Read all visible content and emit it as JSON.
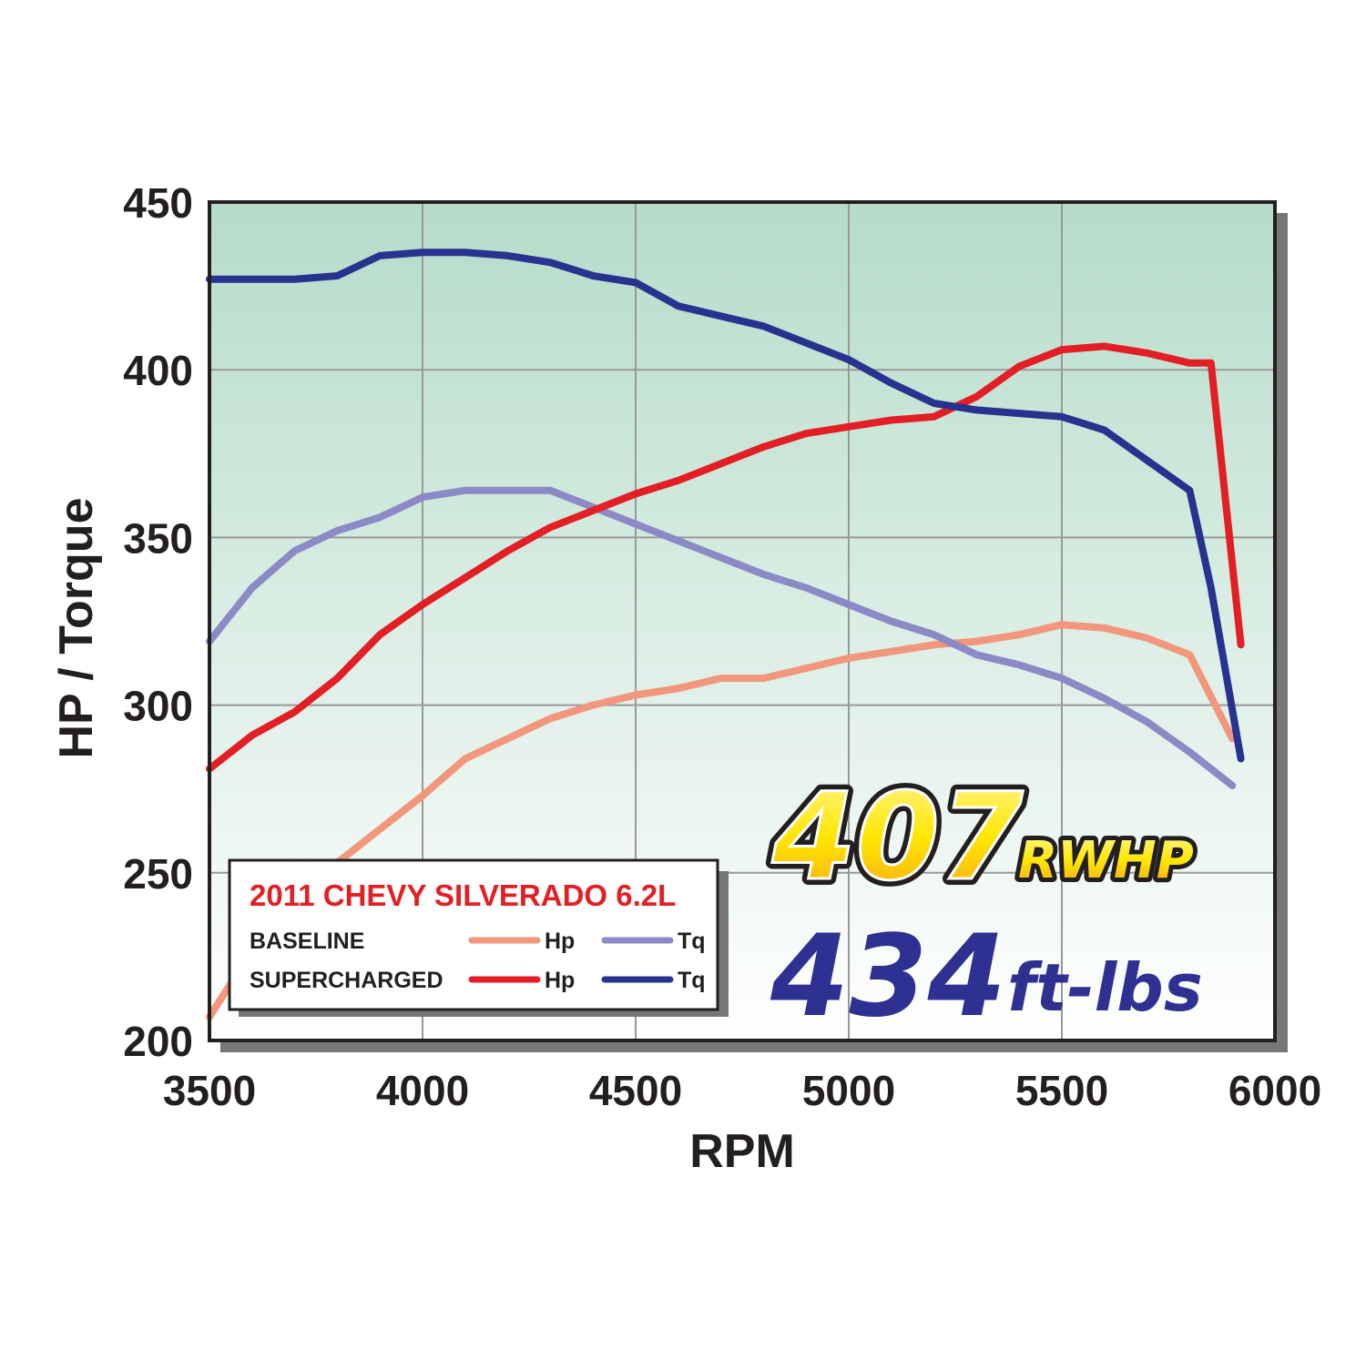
{
  "chart_data": {
    "type": "line",
    "xlabel": "RPM",
    "ylabel": "HP / Torque",
    "xlim": [
      3500,
      6000
    ],
    "ylim": [
      200,
      450
    ],
    "x_ticks": [
      "3500",
      "4000",
      "4500",
      "5000",
      "5500",
      "6000"
    ],
    "y_ticks": [
      "200",
      "250",
      "300",
      "350",
      "400",
      "450"
    ],
    "grid": true,
    "colors": {
      "background_top": "#b5dcc9",
      "background_bottom": "#ffffff",
      "baseline_hp": "#f2967c",
      "baseline_tq": "#8b8ac6",
      "supercharged_hp": "#e31e24",
      "supercharged_tq": "#27338e"
    },
    "series": [
      {
        "key": "baseline_hp",
        "x": [
          3500,
          3600,
          3700,
          3800,
          3900,
          4000,
          4100,
          4200,
          4300,
          4400,
          4500,
          4600,
          4700,
          4800,
          4900,
          5000,
          5100,
          5200,
          5300,
          5400,
          5500,
          5600,
          5700,
          5800,
          5900
        ],
        "values": [
          207,
          227,
          241,
          253,
          263,
          273,
          284,
          290,
          296,
          300,
          303,
          305,
          308,
          308,
          311,
          314,
          316,
          318,
          319,
          321,
          324,
          323,
          320,
          315,
          290
        ]
      },
      {
        "key": "baseline_tq",
        "x": [
          3500,
          3600,
          3700,
          3800,
          3900,
          4000,
          4100,
          4200,
          4300,
          4400,
          4500,
          4600,
          4700,
          4800,
          4900,
          5000,
          5100,
          5200,
          5300,
          5400,
          5500,
          5600,
          5700,
          5800,
          5900
        ],
        "values": [
          319,
          335,
          346,
          352,
          356,
          362,
          364,
          364,
          364,
          359,
          354,
          349,
          344,
          339,
          335,
          330,
          325,
          321,
          315,
          312,
          308,
          302,
          295,
          286,
          276
        ]
      },
      {
        "key": "supercharged_hp",
        "x": [
          3500,
          3600,
          3700,
          3800,
          3900,
          4000,
          4100,
          4200,
          4300,
          4400,
          4500,
          4600,
          4700,
          4800,
          4900,
          5000,
          5100,
          5200,
          5300,
          5400,
          5500,
          5600,
          5700,
          5800,
          5850,
          5920
        ],
        "values": [
          281,
          291,
          298,
          308,
          321,
          330,
          338,
          346,
          353,
          358,
          363,
          367,
          372,
          377,
          381,
          383,
          385,
          386,
          392,
          401,
          406,
          407,
          405,
          402,
          402,
          318
        ]
      },
      {
        "key": "supercharged_tq",
        "x": [
          3500,
          3600,
          3700,
          3800,
          3900,
          4000,
          4100,
          4200,
          4300,
          4400,
          4500,
          4600,
          4700,
          4800,
          4900,
          5000,
          5100,
          5200,
          5300,
          5400,
          5500,
          5600,
          5700,
          5800,
          5850,
          5920
        ],
        "values": [
          427,
          427,
          427,
          428,
          434,
          435,
          435,
          434,
          432,
          428,
          426,
          419,
          416,
          413,
          408,
          403,
          396,
          390,
          388,
          387,
          386,
          382,
          373,
          364,
          335,
          284
        ]
      }
    ],
    "legend": {
      "position": "bottom-left",
      "title": "2011 CHEVY SILVERADO 6.2L",
      "rows": [
        {
          "label": "BASELINE",
          "items": [
            {
              "series": "baseline_hp",
              "label": "Hp"
            },
            {
              "series": "baseline_tq",
              "label": "Tq"
            }
          ]
        },
        {
          "label": "SUPERCHARGED",
          "items": [
            {
              "series": "supercharged_hp",
              "label": "Hp"
            },
            {
              "series": "supercharged_tq",
              "label": "Tq"
            }
          ]
        }
      ]
    },
    "annotations": {
      "hp_value": "407",
      "hp_unit": "RWHP",
      "tq_value": "434",
      "tq_unit": "ft-lbs"
    }
  }
}
